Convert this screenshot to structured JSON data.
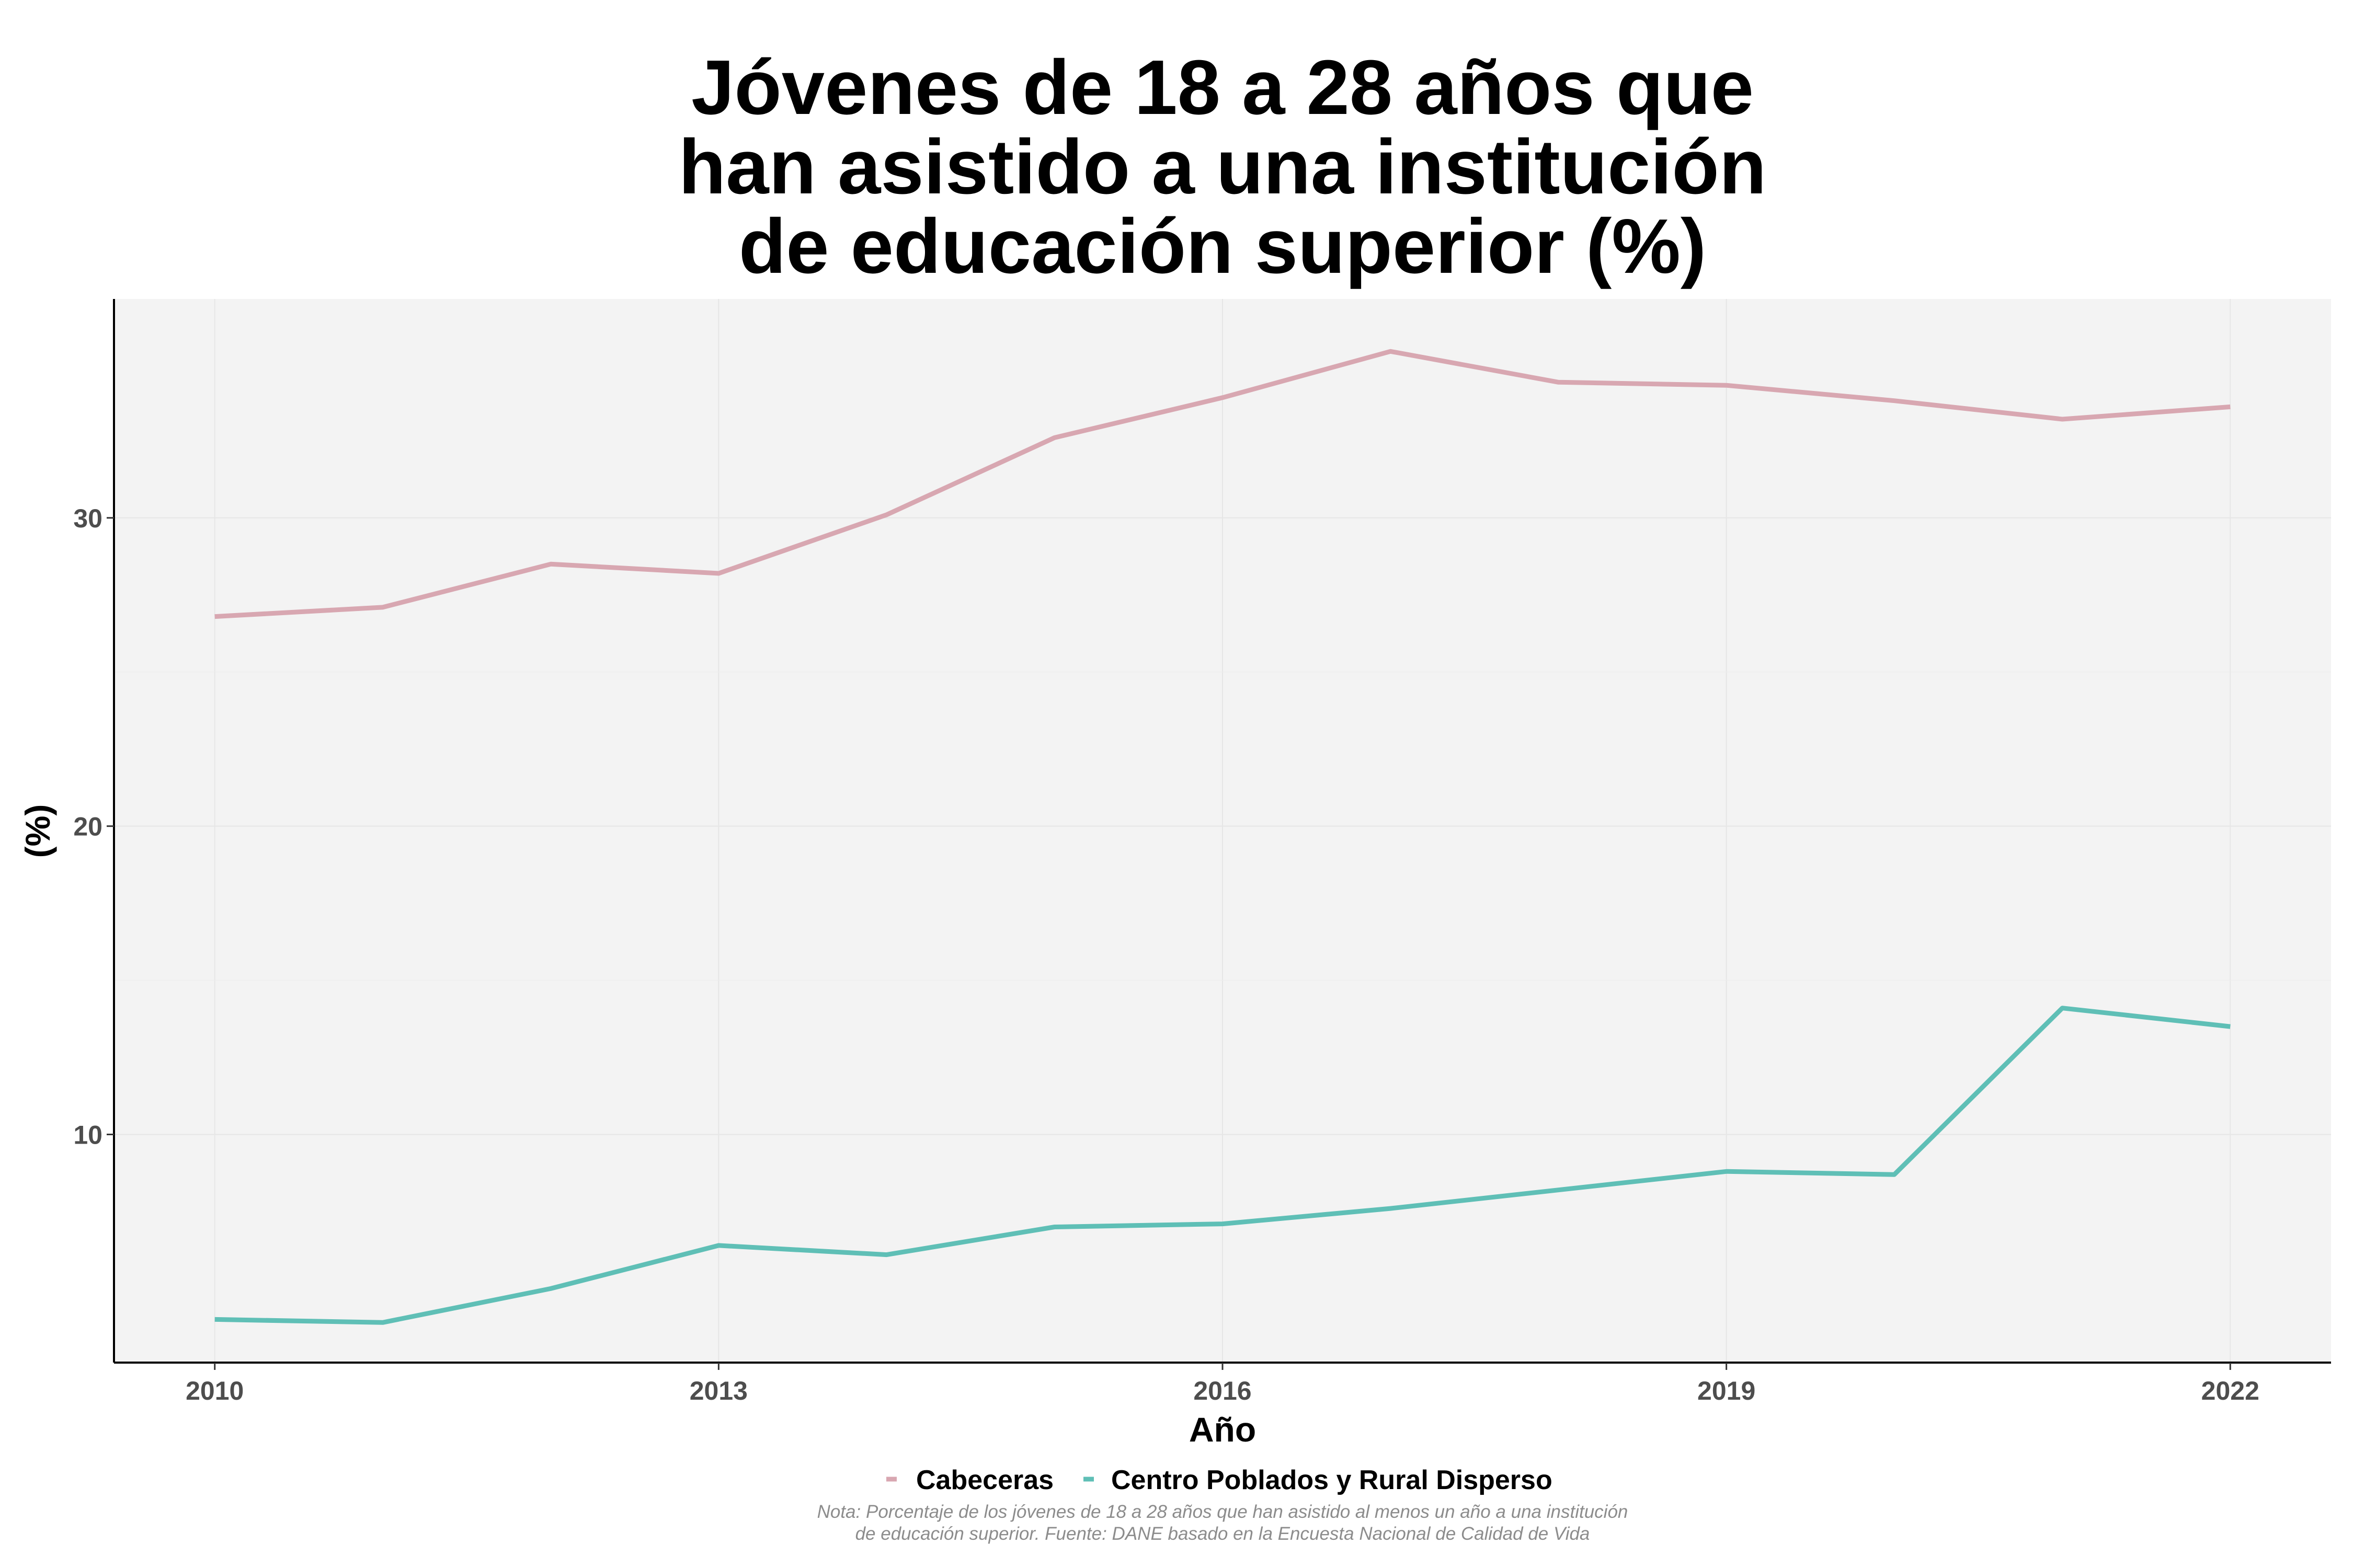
{
  "chart_data": {
    "type": "line",
    "title_lines": [
      "Jóvenes de 18 a 28 años que",
      "han asistido a una institución",
      "de educación superior (%)"
    ],
    "xlabel": "Año",
    "ylabel": "(%)",
    "x": [
      2010,
      2011,
      2012,
      2013,
      2014,
      2015,
      2016,
      2017,
      2018,
      2019,
      2020,
      2021,
      2022
    ],
    "xlim": [
      2009.4,
      2022.6
    ],
    "ylim": [
      2.6,
      37.1
    ],
    "x_ticks": [
      2010,
      2013,
      2016,
      2019,
      2022
    ],
    "y_ticks": [
      10,
      20,
      30
    ],
    "grid": true,
    "legend_position": "bottom",
    "series": [
      {
        "name": "Cabeceras",
        "color": "#d8a7b1",
        "values": [
          26.8,
          27.1,
          28.5,
          28.2,
          30.1,
          32.6,
          33.9,
          35.4,
          34.4,
          34.3,
          33.8,
          33.2,
          33.6
        ]
      },
      {
        "name": "Centro Poblados y Rural Disperso",
        "color": "#5fbfb6",
        "values": [
          4.0,
          3.9,
          5.0,
          6.4,
          6.1,
          7.0,
          7.1,
          7.6,
          8.2,
          8.8,
          8.7,
          14.1,
          13.5
        ]
      }
    ],
    "note_lines": [
      "Nota: Porcentaje de los jóvenes de 18 a 28 años que han asistido al menos un año a una institución",
      "de educación superior. Fuente: DANE basado en la Encuesta Nacional de Calidad de Vida"
    ]
  }
}
